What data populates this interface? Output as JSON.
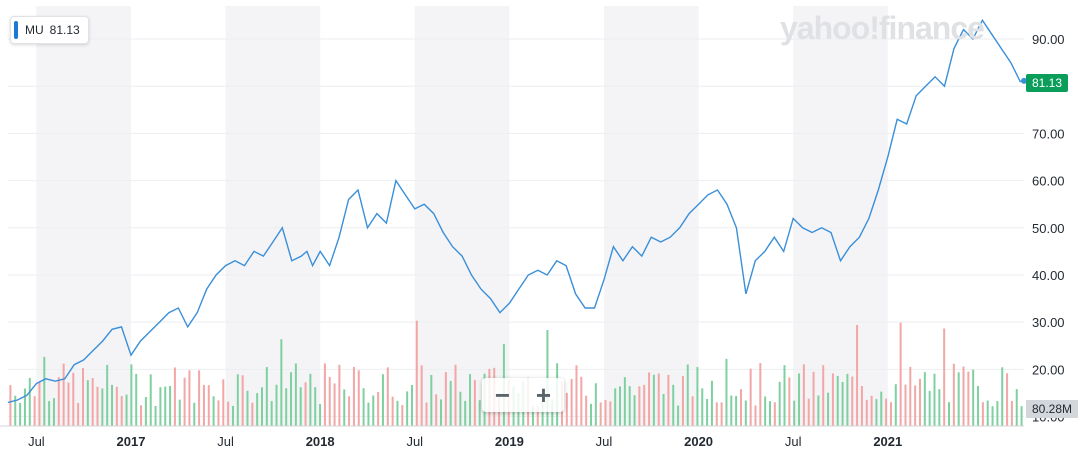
{
  "legend": {
    "symbol": "MU",
    "value": "81.13"
  },
  "logo": "yahoo!finance",
  "last_price_label": "81.13",
  "volume_label": "80.28M",
  "zoom": {
    "minus": "−",
    "plus": "+"
  },
  "colors": {
    "line": "#3a8fd9",
    "up_volume": "#7fd0a0",
    "down_volume": "#f2a6a6",
    "band": "#f4f4f6",
    "grid": "#eceef0",
    "price_badge": "#0b9e5a"
  },
  "chart_data": {
    "type": "line",
    "title": "",
    "xlabel": "",
    "ylabel": "",
    "ylim": [
      8,
      97
    ],
    "xlim": [
      2016.35,
      2021.72
    ],
    "yticks": [
      "10.00",
      "20.00",
      "30.00",
      "40.00",
      "50.00",
      "60.00",
      "70.00",
      "80.00",
      "90.00"
    ],
    "x_ticks": [
      {
        "label": "Jul",
        "x": 2016.5,
        "bold": false
      },
      {
        "label": "2017",
        "x": 2017.0,
        "bold": true
      },
      {
        "label": "Jul",
        "x": 2017.5,
        "bold": false
      },
      {
        "label": "2018",
        "x": 2018.0,
        "bold": true
      },
      {
        "label": "Jul",
        "x": 2018.5,
        "bold": false
      },
      {
        "label": "2019",
        "x": 2019.0,
        "bold": true
      },
      {
        "label": "Jul",
        "x": 2019.5,
        "bold": false
      },
      {
        "label": "2020",
        "x": 2020.0,
        "bold": true
      },
      {
        "label": "Jul",
        "x": 2020.5,
        "bold": false
      },
      {
        "label": "2021",
        "x": 2021.0,
        "bold": true
      }
    ],
    "series": [
      {
        "name": "MU",
        "x": [
          2016.35,
          2016.4,
          2016.45,
          2016.5,
          2016.55,
          2016.6,
          2016.65,
          2016.7,
          2016.75,
          2016.8,
          2016.85,
          2016.9,
          2016.95,
          2017.0,
          2017.05,
          2017.1,
          2017.15,
          2017.2,
          2017.25,
          2017.3,
          2017.35,
          2017.4,
          2017.45,
          2017.5,
          2017.55,
          2017.6,
          2017.65,
          2017.7,
          2017.75,
          2017.8,
          2017.85,
          2017.9,
          2017.93,
          2017.96,
          2018.0,
          2018.05,
          2018.1,
          2018.15,
          2018.2,
          2018.25,
          2018.3,
          2018.35,
          2018.4,
          2018.45,
          2018.5,
          2018.55,
          2018.6,
          2018.65,
          2018.7,
          2018.75,
          2018.8,
          2018.85,
          2018.9,
          2018.95,
          2019.0,
          2019.05,
          2019.1,
          2019.15,
          2019.2,
          2019.25,
          2019.3,
          2019.35,
          2019.4,
          2019.45,
          2019.5,
          2019.55,
          2019.6,
          2019.65,
          2019.7,
          2019.75,
          2019.8,
          2019.85,
          2019.9,
          2019.95,
          2020.0,
          2020.05,
          2020.1,
          2020.15,
          2020.2,
          2020.25,
          2020.3,
          2020.35,
          2020.4,
          2020.45,
          2020.5,
          2020.55,
          2020.6,
          2020.65,
          2020.7,
          2020.75,
          2020.8,
          2020.85,
          2020.9,
          2020.95,
          2021.0,
          2021.05,
          2021.1,
          2021.15,
          2021.2,
          2021.25,
          2021.3,
          2021.35,
          2021.4,
          2021.45,
          2021.5,
          2021.55,
          2021.6,
          2021.65,
          2021.7,
          2021.72
        ],
        "values": [
          13.0,
          13.5,
          14.5,
          17.0,
          18.0,
          17.5,
          18.0,
          21.0,
          22.0,
          24.0,
          26.0,
          28.5,
          29.0,
          23.0,
          26.0,
          28.0,
          30.0,
          32.0,
          33.0,
          29.0,
          32.0,
          37.0,
          40.0,
          42.0,
          43.0,
          42.0,
          45.0,
          44.0,
          47.0,
          50.0,
          43.0,
          44.0,
          45.0,
          42.0,
          45.0,
          42.0,
          48.0,
          56.0,
          58.0,
          50.0,
          53.0,
          51.0,
          60.0,
          57.0,
          54.0,
          55.0,
          53.0,
          49.0,
          46.0,
          44.0,
          40.0,
          37.0,
          35.0,
          32.0,
          34.0,
          37.0,
          40.0,
          41.0,
          40.0,
          43.0,
          42.0,
          36.0,
          33.0,
          33.0,
          39.0,
          46.0,
          43.0,
          46.0,
          44.0,
          48.0,
          47.0,
          48.0,
          50.0,
          53.0,
          55.0,
          57.0,
          58.0,
          55.0,
          50.0,
          36.0,
          43.0,
          45.0,
          48.0,
          45.0,
          52.0,
          50.0,
          49.0,
          50.0,
          49.0,
          43.0,
          46.0,
          48.0,
          52.0,
          58.0,
          65.0,
          73.0,
          72.0,
          78.0,
          80.0,
          82.0,
          80.0,
          88.0,
          92.0,
          90.0,
          94.0,
          91.0,
          88.0,
          85.0,
          81.0,
          81.13
        ]
      }
    ],
    "volume": {
      "name": "Volume",
      "max": 80.28,
      "count": 210
    }
  }
}
